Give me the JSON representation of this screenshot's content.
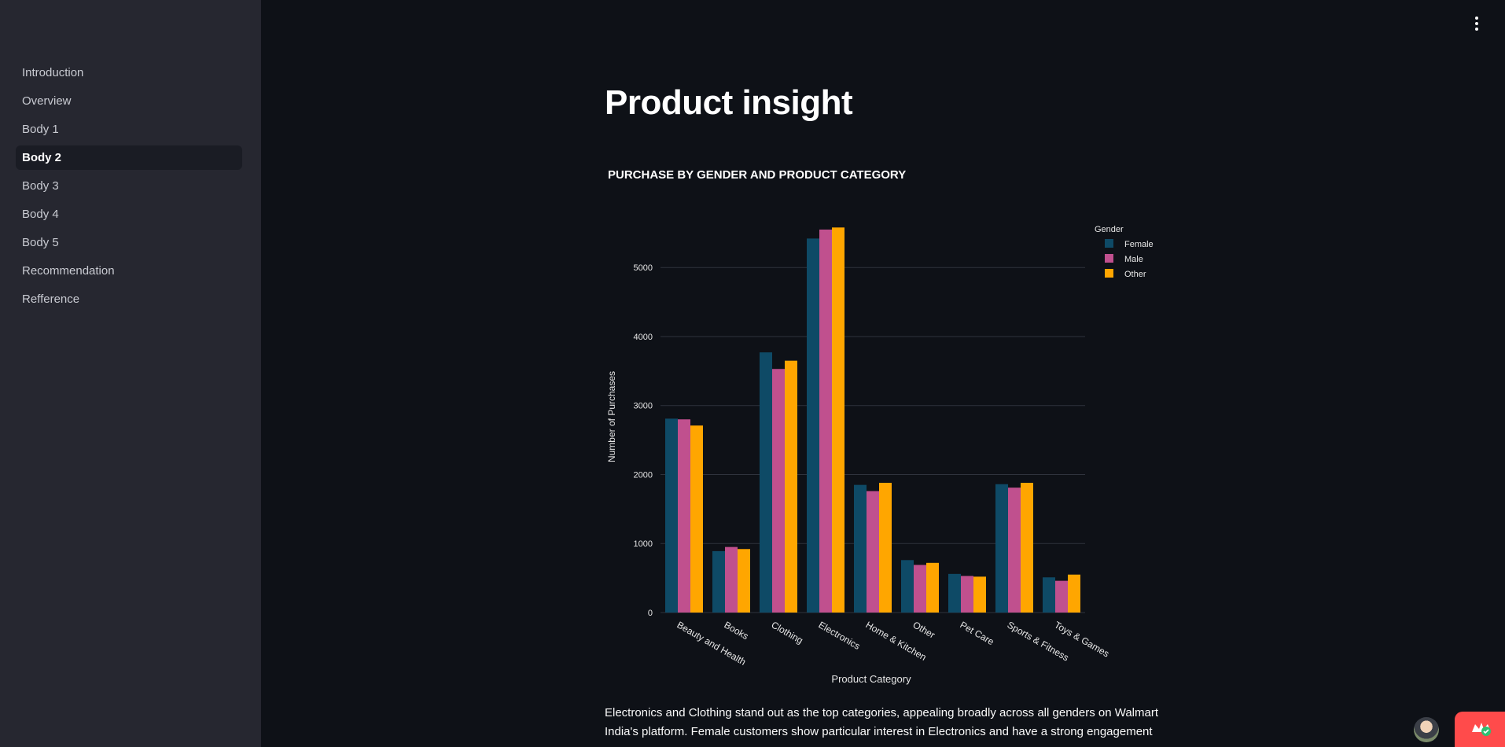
{
  "sidebar": {
    "items": [
      {
        "label": "Introduction"
      },
      {
        "label": "Overview"
      },
      {
        "label": "Body 1"
      },
      {
        "label": "Body 2"
      },
      {
        "label": "Body 3"
      },
      {
        "label": "Body 4"
      },
      {
        "label": "Body 5"
      },
      {
        "label": "Recommendation"
      },
      {
        "label": "Refference"
      }
    ],
    "active_index": 3
  },
  "main": {
    "title": "Product insight",
    "description": "Electronics and Clothing stand out as the top categories, appealing broadly across all genders on Walmart India's platform. Female customers show particular interest in Electronics and have a strong engagement"
  },
  "icons": {
    "menu": "vertical-ellipsis-icon",
    "avatar": "user-avatar",
    "badge": "streamlit-crown-icon"
  },
  "chart_data": {
    "type": "bar",
    "title": "PURCHASE BY GENDER AND PRODUCT CATEGORY",
    "xlabel": "Product Category",
    "ylabel": "Number of Purchases",
    "ylim": [
      0,
      5800
    ],
    "yticks": [
      0,
      1000,
      2000,
      3000,
      4000,
      5000
    ],
    "grid": true,
    "legend_title": "Gender",
    "legend_position": "top-right",
    "categories": [
      "Beauty and Health",
      "Books",
      "Clothing",
      "Electronics",
      "Home & Kitchen",
      "Other",
      "Pet Care",
      "Sports & Fitness",
      "Toys & Games"
    ],
    "series": [
      {
        "name": "Female",
        "color": "#0e4a66",
        "values": [
          2810,
          890,
          3770,
          5420,
          1850,
          760,
          560,
          1860,
          510
        ]
      },
      {
        "name": "Male",
        "color": "#c0508e",
        "values": [
          2800,
          950,
          3530,
          5550,
          1760,
          690,
          530,
          1810,
          460
        ]
      },
      {
        "name": "Other",
        "color": "#ffa600",
        "values": [
          2710,
          920,
          3650,
          5580,
          1880,
          720,
          520,
          1880,
          550
        ]
      }
    ]
  }
}
